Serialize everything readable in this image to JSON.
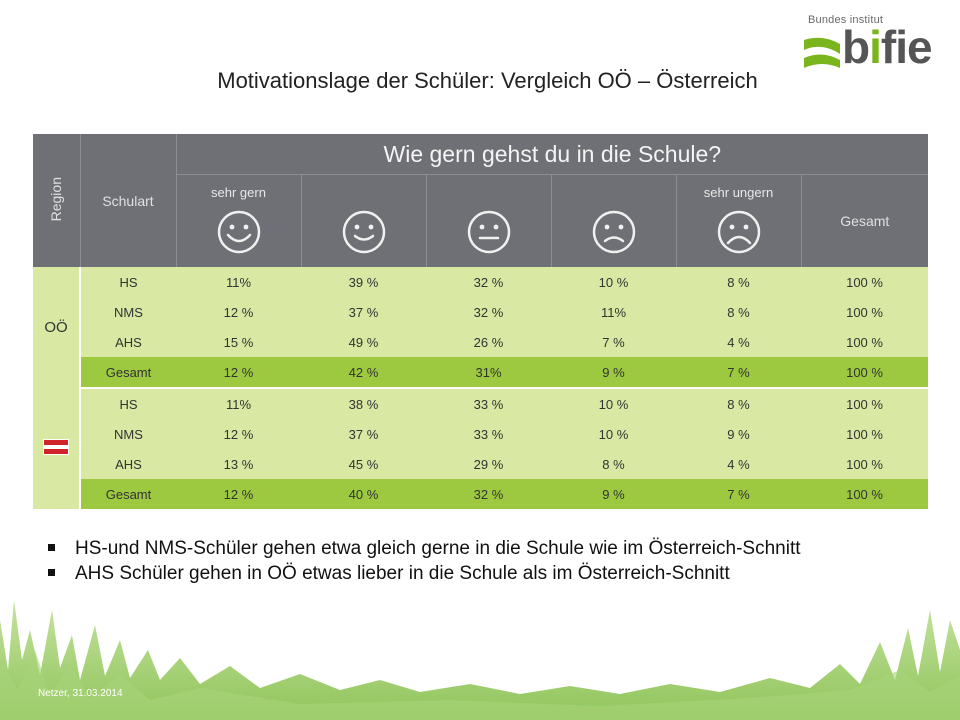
{
  "title": "Motivationslage der Schüler: Vergleich OÖ – Österreich",
  "logo": {
    "small": "Bundes institut",
    "brand_pre": "b",
    "brand_i": "i",
    "brand_post": "fie"
  },
  "table": {
    "question": "Wie gern gehst du in die Schule?",
    "region_header": "Region",
    "schoolart_header": "Schulart",
    "answer_labels": [
      "sehr gern",
      "",
      "",
      "",
      "sehr ungern"
    ],
    "answer_faces": [
      "very-happy",
      "happy",
      "neutral",
      "sad",
      "very-sad"
    ],
    "total_header": "Gesamt",
    "groups": [
      {
        "region": "OÖ",
        "rows": [
          {
            "type": "HS",
            "values": [
              "11%",
              "39 %",
              "32 %",
              "10 %",
              "8 %",
              "100 %"
            ]
          },
          {
            "type": "NMS",
            "values": [
              "12 %",
              "37 %",
              "32 %",
              "11%",
              "8 %",
              "100 %"
            ]
          },
          {
            "type": "AHS",
            "values": [
              "15 %",
              "49 %",
              "26 %",
              "7 %",
              "4 %",
              "100 %"
            ]
          },
          {
            "type": "Gesamt",
            "values": [
              "12 %",
              "42 %",
              "31%",
              "9 %",
              "7 %",
              "100 %"
            ]
          }
        ]
      },
      {
        "region": "",
        "region_flag": "austria-flag",
        "rows": [
          {
            "type": "HS",
            "values": [
              "11%",
              "38 %",
              "33 %",
              "10 %",
              "8 %",
              "100 %"
            ]
          },
          {
            "type": "NMS",
            "values": [
              "12 %",
              "37 %",
              "33 %",
              "10 %",
              "9 %",
              "100 %"
            ]
          },
          {
            "type": "AHS",
            "values": [
              "13 %",
              "45 %",
              "29 %",
              "8 %",
              "4 %",
              "100 %"
            ]
          },
          {
            "type": "Gesamt",
            "values": [
              "12 %",
              "40 %",
              "32 %",
              "9 %",
              "7 %",
              "100 %"
            ]
          }
        ]
      }
    ]
  },
  "bullets": [
    "HS-und NMS-Schüler gehen etwa gleich gerne in die Schule wie im Österreich-Schnitt",
    "AHS Schüler gehen in OÖ etwas lieber in die Schule als im Österreich-Schnitt"
  ],
  "footer": "Netzer, 31.03.2014",
  "colors": {
    "header_bg": "#6f7075",
    "row_light": "#d9e8a3",
    "row_total": "#9cc940",
    "flag_red": "#d2232a"
  }
}
